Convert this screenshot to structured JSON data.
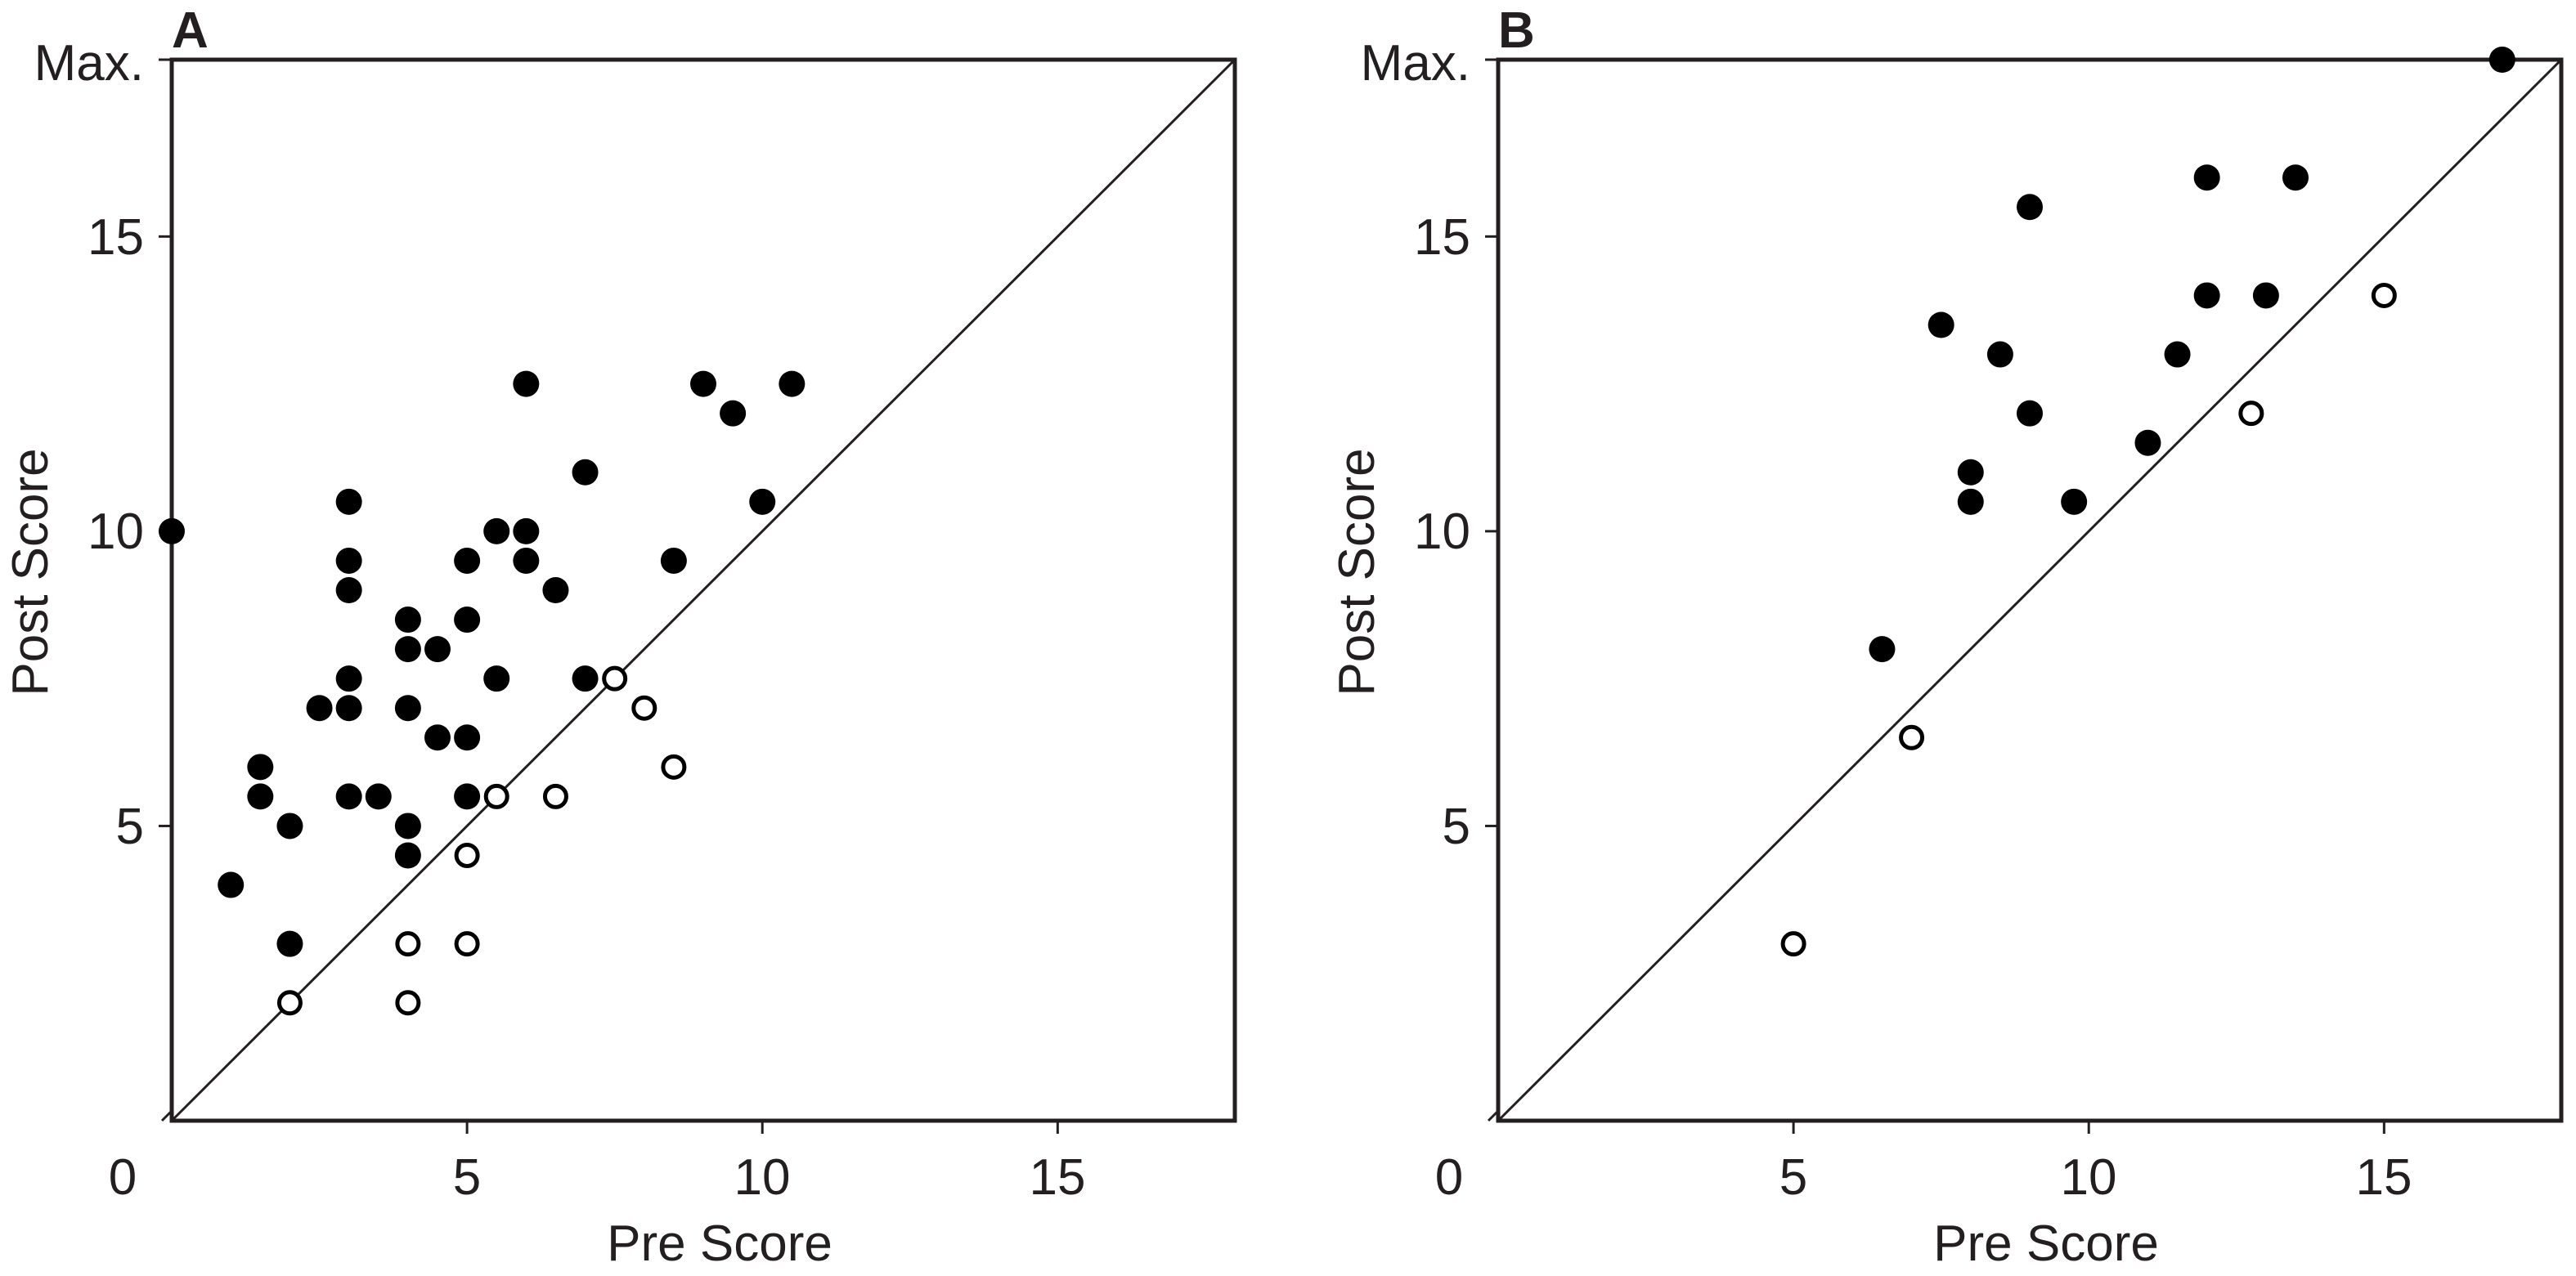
{
  "chart_data": [
    {
      "type": "scatter",
      "panel_label": "A",
      "xlabel": "Pre Score",
      "ylabel": "Post Score",
      "xlim": [
        0,
        18
      ],
      "ylim": [
        0,
        18
      ],
      "x_ticks": [
        "0",
        "5",
        "10",
        "15"
      ],
      "y_ticks": [
        "5",
        "10",
        "15",
        "Max."
      ],
      "reference_line": "y = x",
      "grid": false,
      "series": [
        {
          "marker": "filled-circle",
          "color": "#000000",
          "points": [
            [
              0,
              10
            ],
            [
              1,
              4
            ],
            [
              1.5,
              6
            ],
            [
              1.5,
              5.5
            ],
            [
              2,
              5
            ],
            [
              2,
              3
            ],
            [
              2.5,
              7
            ],
            [
              3,
              10.5
            ],
            [
              3,
              9.5
            ],
            [
              3,
              9
            ],
            [
              3,
              7.5
            ],
            [
              3,
              7
            ],
            [
              3,
              5.5
            ],
            [
              3.5,
              5.5
            ],
            [
              4,
              8.5
            ],
            [
              4,
              8
            ],
            [
              4,
              7
            ],
            [
              4,
              5
            ],
            [
              4,
              4.5
            ],
            [
              4.5,
              8
            ],
            [
              4.5,
              6.5
            ],
            [
              5,
              9.5
            ],
            [
              5,
              8.5
            ],
            [
              5,
              6.5
            ],
            [
              5,
              5.5
            ],
            [
              5.5,
              10
            ],
            [
              5.5,
              7.5
            ],
            [
              6,
              12.5
            ],
            [
              6,
              10
            ],
            [
              6,
              9.5
            ],
            [
              6.5,
              9
            ],
            [
              7,
              11
            ],
            [
              7,
              7.5
            ],
            [
              8.5,
              9.5
            ],
            [
              9,
              12.5
            ],
            [
              9.5,
              12
            ],
            [
              10,
              10.5
            ],
            [
              10.5,
              12.5
            ]
          ]
        },
        {
          "marker": "open-circle",
          "color": "#000000",
          "points": [
            [
              2,
              2
            ],
            [
              4,
              3
            ],
            [
              4,
              2
            ],
            [
              5,
              4.5
            ],
            [
              5,
              3
            ],
            [
              5.5,
              5.5
            ],
            [
              6.5,
              5.5
            ],
            [
              7.5,
              7.5
            ],
            [
              8,
              7
            ],
            [
              8.5,
              6
            ]
          ]
        }
      ]
    },
    {
      "type": "scatter",
      "panel_label": "B",
      "xlabel": "Pre Score",
      "ylabel": "Post Score",
      "xlim": [
        0,
        18
      ],
      "ylim": [
        0,
        18
      ],
      "x_ticks": [
        "0",
        "5",
        "10",
        "15"
      ],
      "y_ticks": [
        "5",
        "10",
        "15",
        "Max."
      ],
      "reference_line": "y = x",
      "grid": false,
      "series": [
        {
          "marker": "filled-circle",
          "color": "#000000",
          "points": [
            [
              6.5,
              8
            ],
            [
              7.5,
              13.5
            ],
            [
              8,
              11
            ],
            [
              8,
              10.5
            ],
            [
              8.5,
              13
            ],
            [
              9,
              15.5
            ],
            [
              9,
              12
            ],
            [
              9.75,
              10.5
            ],
            [
              11,
              11.5
            ],
            [
              11.5,
              13
            ],
            [
              12,
              16
            ],
            [
              12,
              14
            ],
            [
              13,
              14
            ],
            [
              13.5,
              16
            ],
            [
              17,
              18
            ]
          ]
        },
        {
          "marker": "open-circle",
          "color": "#000000",
          "points": [
            [
              5,
              3
            ],
            [
              7,
              6.5
            ],
            [
              12.75,
              12
            ],
            [
              15,
              14
            ]
          ]
        }
      ]
    }
  ]
}
